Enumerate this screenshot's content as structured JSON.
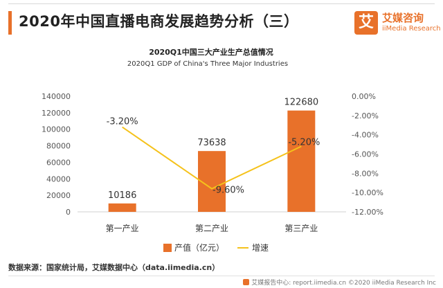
{
  "page_title": "2020年中国直播电商发展趋势分析（三）",
  "brand": {
    "mark": "艾",
    "name_cn": "艾媒咨询",
    "name_en": "iiMedia Research",
    "accent": "#e8712a"
  },
  "source_text": "数据来源：国家统计局，艾媒数据中心（data.iimedia.cn）",
  "footer_text": "艾媒报告中心: report.iimedia.cn  ©2020  iiMedia Research  Inc",
  "chart_data": {
    "type": "bar",
    "title": "2020Q1中国三大产业生产总值情况",
    "subtitle": "2020Q1 GDP of China's Three Major Industries",
    "categories": [
      "第一产业",
      "第二产业",
      "第三产业"
    ],
    "series": [
      {
        "name": "产值（亿元）",
        "type": "bar",
        "axis": "left",
        "color": "#e8712a",
        "values": [
          10186,
          73638,
          122680
        ],
        "labels": [
          "10186",
          "73638",
          "122680"
        ]
      },
      {
        "name": "增速",
        "type": "line",
        "axis": "right",
        "color": "#f5c21b",
        "values": [
          -3.2,
          -9.6,
          -5.2
        ],
        "labels": [
          "-3.20%",
          "-9.60%",
          "-5.20%"
        ]
      }
    ],
    "y_left": {
      "min": 0,
      "max": 140000,
      "step": 20000,
      "ticks": [
        "0",
        "20000",
        "40000",
        "60000",
        "80000",
        "100000",
        "120000",
        "140000"
      ]
    },
    "y_right": {
      "min": -12,
      "max": 0,
      "step": 2,
      "ticks": [
        "0.00%",
        "-2.00%",
        "-4.00%",
        "-6.00%",
        "-8.00%",
        "-10.00%",
        "-12.00%"
      ]
    },
    "grid": false,
    "legend_position": "bottom"
  }
}
